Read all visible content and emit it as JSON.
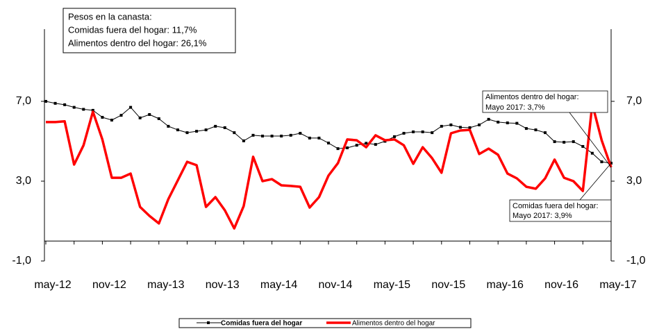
{
  "chart_data": {
    "type": "line",
    "categories": [
      "may-12",
      null,
      null,
      null,
      null,
      null,
      "nov-12",
      null,
      null,
      null,
      null,
      null,
      "may-13",
      null,
      null,
      null,
      null,
      null,
      "nov-13",
      null,
      null,
      null,
      null,
      null,
      "may-14",
      null,
      null,
      null,
      null,
      null,
      "nov-14",
      null,
      null,
      null,
      null,
      null,
      "may-15",
      null,
      null,
      null,
      null,
      null,
      "nov-15",
      null,
      null,
      null,
      null,
      null,
      "may-16",
      null,
      null,
      null,
      null,
      null,
      "nov-16",
      null,
      null,
      null,
      null,
      null,
      "may-17"
    ],
    "series": [
      {
        "name": "Comidas fuera del hogar",
        "color": "#000000",
        "values": [
          7.0,
          6.9,
          6.83,
          6.7,
          6.6,
          6.55,
          6.2,
          6.06,
          6.3,
          6.7,
          6.17,
          6.34,
          6.13,
          5.75,
          5.57,
          5.43,
          5.5,
          5.57,
          5.75,
          5.68,
          5.43,
          5.02,
          5.3,
          5.26,
          5.26,
          5.26,
          5.3,
          5.4,
          5.16,
          5.16,
          4.91,
          4.63,
          4.67,
          4.8,
          4.9,
          4.84,
          5.0,
          5.23,
          5.4,
          5.47,
          5.47,
          5.43,
          5.75,
          5.82,
          5.7,
          5.68,
          5.82,
          6.1,
          5.96,
          5.92,
          5.9,
          5.64,
          5.57,
          5.43,
          4.98,
          4.95,
          4.98,
          4.74,
          4.4,
          3.97,
          3.9
        ]
      },
      {
        "name": "Alimentos dentro del hogar",
        "color": "#ff0000",
        "values": [
          5.96,
          5.96,
          6.0,
          3.83,
          4.8,
          6.48,
          5.09,
          3.17,
          3.17,
          3.38,
          1.71,
          1.26,
          0.88,
          2.1,
          3.03,
          3.97,
          3.8,
          1.71,
          2.2,
          1.54,
          0.63,
          1.75,
          4.22,
          3.0,
          3.1,
          2.79,
          2.76,
          2.72,
          1.68,
          2.2,
          3.28,
          3.9,
          5.09,
          5.05,
          4.7,
          5.3,
          5.05,
          5.09,
          4.8,
          3.87,
          4.7,
          4.15,
          3.42,
          5.4,
          5.54,
          5.57,
          4.36,
          4.63,
          4.32,
          3.38,
          3.14,
          2.72,
          2.62,
          3.14,
          4.08,
          3.17,
          3.0,
          2.51,
          6.86,
          5.05,
          3.7
        ]
      }
    ],
    "ylim": [
      -1,
      11
    ],
    "yticks": [
      {
        "value": -1,
        "label": "-1,0"
      },
      {
        "value": 3,
        "label": "3,0"
      },
      {
        "value": 7,
        "label": "7,0"
      }
    ],
    "y2lim": [
      -1,
      11
    ],
    "y2ticks": [
      {
        "value": -1,
        "label": "-1,0"
      },
      {
        "value": 3,
        "label": "3,0"
      },
      {
        "value": 7,
        "label": "7,0"
      }
    ],
    "weights_box": [
      "Pesos en la canasta:",
      "Comidas fuera del hogar: 11,7%",
      "Alimentos dentro del hogar: 26,1%"
    ],
    "callout_food_home": [
      "Alimentos dentro del hogar:",
      "Mayo 2017: 3,7%"
    ],
    "callout_food_out": [
      "Comidas fuera del hogar:",
      "Mayo 2017: 3,9%"
    ]
  }
}
